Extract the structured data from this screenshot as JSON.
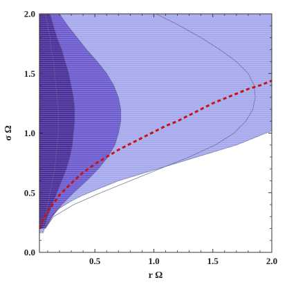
{
  "chart_data": {
    "type": "contour",
    "xlabel": "r Ω",
    "ylabel": "σ Ω",
    "xlim": [
      0.03,
      2.0
    ],
    "ylim": [
      0.0,
      2.0
    ],
    "x_ticks": [
      "0.5",
      "1.0",
      "1.5",
      "2.0"
    ],
    "y_ticks": [
      "0.0",
      "0.5",
      "1.0",
      "1.5",
      "2.0"
    ],
    "grid": false,
    "legend": "none",
    "region_colors": [
      "#a6aaec",
      "#8d86e0",
      "#6d5bd0",
      "#4a2f98"
    ],
    "contour_line_color": "#5a5a8a",
    "curve_color": "#cc1111",
    "boundary": {
      "x": [
        0.06,
        0.08,
        0.1,
        0.15,
        0.2,
        0.3,
        0.4,
        0.5,
        0.6,
        0.7,
        0.8,
        0.9,
        1.0,
        1.1,
        1.2,
        1.3,
        1.4,
        1.5,
        1.6,
        1.7,
        1.8,
        1.9,
        2.0
      ],
      "y": [
        0.16,
        0.22,
        0.27,
        0.33,
        0.37,
        0.43,
        0.48,
        0.52,
        0.56,
        0.6,
        0.63,
        0.66,
        0.69,
        0.72,
        0.75,
        0.78,
        0.81,
        0.84,
        0.87,
        0.9,
        0.94,
        0.98,
        1.02
      ]
    },
    "contours": [
      {
        "level": 1,
        "y": [
          0.2,
          0.3,
          0.4,
          0.5,
          0.6,
          0.7,
          0.8,
          0.9,
          1.0,
          1.1,
          1.2,
          1.3,
          1.4,
          1.5,
          1.6,
          1.7,
          1.8,
          1.9,
          2.0
        ],
        "x": [
          0.08,
          0.15,
          0.32,
          0.55,
          0.8,
          1.05,
          1.3,
          1.52,
          1.68,
          1.78,
          1.84,
          1.86,
          1.85,
          1.8,
          1.7,
          1.56,
          1.4,
          1.22,
          1.02
        ]
      },
      {
        "level": 2,
        "y": [
          0.2,
          0.3,
          0.4,
          0.5,
          0.6,
          0.7,
          0.8,
          0.9,
          1.0,
          1.1,
          1.2,
          1.3,
          1.4,
          1.5,
          1.6,
          1.7,
          1.8,
          1.9,
          2.0
        ],
        "x": [
          0.08,
          0.14,
          0.22,
          0.32,
          0.43,
          0.53,
          0.61,
          0.67,
          0.7,
          0.72,
          0.72,
          0.7,
          0.66,
          0.6,
          0.52,
          0.43,
          0.35,
          0.27,
          0.2
        ]
      },
      {
        "level": 3,
        "y": [
          0.2,
          0.3,
          0.4,
          0.5,
          0.6,
          0.7,
          0.8,
          0.9,
          1.0,
          1.1,
          1.2,
          1.3,
          1.4,
          1.5,
          1.6,
          1.7,
          1.8,
          1.9,
          2.0
        ],
        "x": [
          0.07,
          0.1,
          0.14,
          0.18,
          0.22,
          0.26,
          0.29,
          0.31,
          0.32,
          0.33,
          0.33,
          0.32,
          0.3,
          0.28,
          0.25,
          0.22,
          0.18,
          0.15,
          0.12
        ]
      },
      {
        "level": 4,
        "y": [
          0.2,
          0.3,
          0.4,
          0.5,
          0.6,
          0.7,
          0.8,
          0.9,
          1.0,
          1.1,
          1.2,
          1.3,
          1.4,
          1.5,
          1.6,
          1.7,
          1.8,
          1.9,
          2.0
        ],
        "x": [
          0.06,
          0.08,
          0.1,
          0.12,
          0.14,
          0.16,
          0.17,
          0.18,
          0.19,
          0.19,
          0.19,
          0.18,
          0.17,
          0.16,
          0.15,
          0.13,
          0.12,
          0.1,
          0.08
        ]
      }
    ],
    "series": [
      {
        "style": "dashed",
        "x": [
          0.03,
          0.06,
          0.1,
          0.15,
          0.2,
          0.3,
          0.4,
          0.5,
          0.6,
          0.7,
          0.8,
          0.9,
          1.0,
          1.1,
          1.2,
          1.3,
          1.4,
          1.5,
          1.6,
          1.7,
          1.8,
          1.9,
          2.0
        ],
        "y": [
          0.2,
          0.27,
          0.34,
          0.41,
          0.48,
          0.58,
          0.67,
          0.74,
          0.8,
          0.86,
          0.91,
          0.96,
          1.01,
          1.06,
          1.1,
          1.15,
          1.2,
          1.25,
          1.29,
          1.33,
          1.37,
          1.4,
          1.44
        ]
      }
    ]
  }
}
